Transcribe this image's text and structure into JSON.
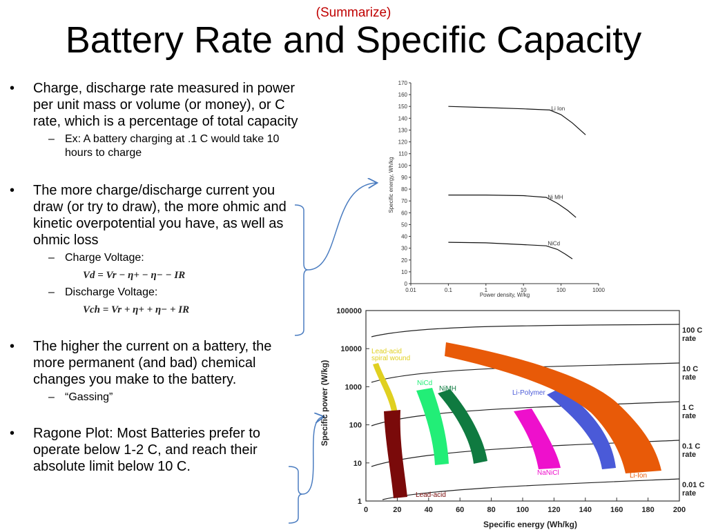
{
  "slide": {
    "supertitle": "(Summarize)",
    "title": "Battery Rate and Specific Capacity",
    "bullet_char": "•",
    "dash_char": "–",
    "bullets": [
      {
        "text": "Charge, discharge rate measured in power per unit mass or volume (or money), or C rate, which is a percentage of total capacity",
        "subs": [
          "Ex: A battery charging at .1 C would take 10 hours to charge"
        ]
      },
      {
        "text": "The more charge/discharge current you draw (or try to draw), the more ohmic and kinetic overpotential you have, as well as ohmic loss",
        "subs": [
          "Charge Voltage:",
          "Discharge Voltage:"
        ]
      },
      {
        "text": "The higher the current on a battery, the more permanent (and bad) chemical changes you make to the battery.",
        "subs": [
          "“Gassing”"
        ]
      },
      {
        "text": "Ragone Plot: Most Batteries prefer to operate below 1-2 C, and reach their absolute limit below 10 C.",
        "subs": []
      }
    ],
    "equations": {
      "charge": "Vd = Vr − η+ − η− − IR",
      "discharge": "Vch = Vr + η+ + η− + IR"
    }
  },
  "chart_data": [
    {
      "type": "line",
      "xlabel": "Power density, W/kg",
      "ylabel": "Specific energy, Wh/kg",
      "x_scale": "log",
      "xlim": [
        0.01,
        1000
      ],
      "ylim": [
        0,
        170
      ],
      "x_ticks": [
        "0.01",
        "0.1",
        "1",
        "10",
        "100",
        "1000"
      ],
      "y_ticks": [
        0,
        10,
        20,
        30,
        40,
        50,
        60,
        70,
        80,
        90,
        100,
        110,
        120,
        130,
        140,
        150,
        160,
        170
      ],
      "series": [
        {
          "name": "Li Ion",
          "x": [
            0.1,
            1,
            10,
            50,
            100,
            200,
            450
          ],
          "y": [
            150,
            149,
            148,
            147,
            143,
            136,
            126
          ]
        },
        {
          "name": "Ni MH",
          "x": [
            0.1,
            1,
            10,
            40,
            80,
            150,
            250
          ],
          "y": [
            75,
            75,
            74.5,
            73,
            68,
            62,
            56
          ]
        },
        {
          "name": "NiCd",
          "x": [
            0.1,
            1,
            10,
            40,
            80,
            130,
            200
          ],
          "y": [
            35,
            34.5,
            33,
            32,
            29,
            25,
            21
          ]
        }
      ]
    },
    {
      "type": "area",
      "xlabel": "Specific energy (Wh/kg)",
      "ylabel": "Specific power (W/kg)",
      "y_scale": "log",
      "xlim": [
        0,
        200
      ],
      "ylim": [
        1,
        100000
      ],
      "x_ticks": [
        "0",
        "20",
        "40",
        "60",
        "80",
        "100",
        "120",
        "140",
        "160",
        "180",
        "200"
      ],
      "y_ticks": [
        "1",
        "10",
        "100",
        "1000",
        "10000",
        "100000"
      ],
      "rate_lines": [
        "100 C rate",
        "10 C rate",
        "1 C rate",
        "0.1 C rate",
        "0.01 C rate"
      ],
      "regions": [
        {
          "name": "Lead-acid spiral wound",
          "color": "#e0d020"
        },
        {
          "name": "Lead-acid",
          "color": "#7a0a0a"
        },
        {
          "name": "NiCd",
          "color": "#22ee77"
        },
        {
          "name": "NiMH",
          "color": "#0f7a40"
        },
        {
          "name": "NaNiCl",
          "color": "#ee10cc"
        },
        {
          "name": "Li-Polymer",
          "color": "#4a5ad8"
        },
        {
          "name": "Li-Ion",
          "color": "#e85a08"
        }
      ]
    }
  ]
}
